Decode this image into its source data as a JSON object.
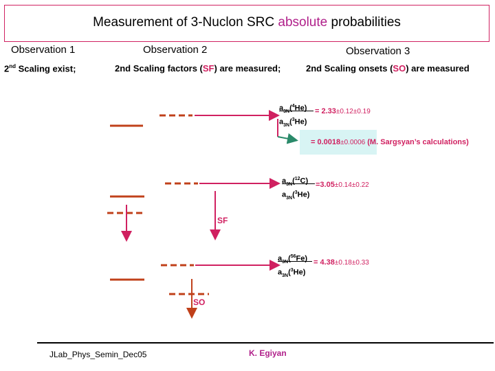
{
  "title": {
    "prefix": "Measurement of 3-Nuclon SRC ",
    "highlight": "absolute",
    "suffix": " probabilities"
  },
  "observations": [
    {
      "label": "Observation 1",
      "desc": "2nd Scaling exist;"
    },
    {
      "label": "Observation 2",
      "desc_prefix": "2nd Scaling factors (",
      "desc_hl": "SF",
      "desc_suffix": ") are measured;"
    },
    {
      "label": "Observation 3",
      "desc_prefix": "2nd Scaling onsets (",
      "desc_hl": "SO",
      "desc_suffix": ") are measured"
    }
  ],
  "ratios": [
    {
      "num": "a3N(4He)",
      "den": "a3N(3He)",
      "value": "= 2.33",
      "err": "±0.12±0.19"
    },
    {
      "num": "a3N(12C)",
      "den": "a3N(3He)",
      "value": "=3.05",
      "err": "±0.14±0.22"
    },
    {
      "num": "a3N(56Fe)",
      "den": "a3N(3He)",
      "value": "= 4.38",
      "err": "±0.18±0.33"
    }
  ],
  "calc": {
    "value": "= 0.0018",
    "err": "±0.0006",
    "note": "(M. Sargsyan’s calculations)"
  },
  "labels": {
    "sf": "SF",
    "so": "SO"
  },
  "footer": {
    "left": "JLab_Phys_Semin_Dec05",
    "author": "K. Egiyan"
  },
  "colors": {
    "accent": "#d02060",
    "arrow_dark": "#c0401a",
    "title_hl": "#b0208a",
    "box": "#d8f4f4"
  }
}
